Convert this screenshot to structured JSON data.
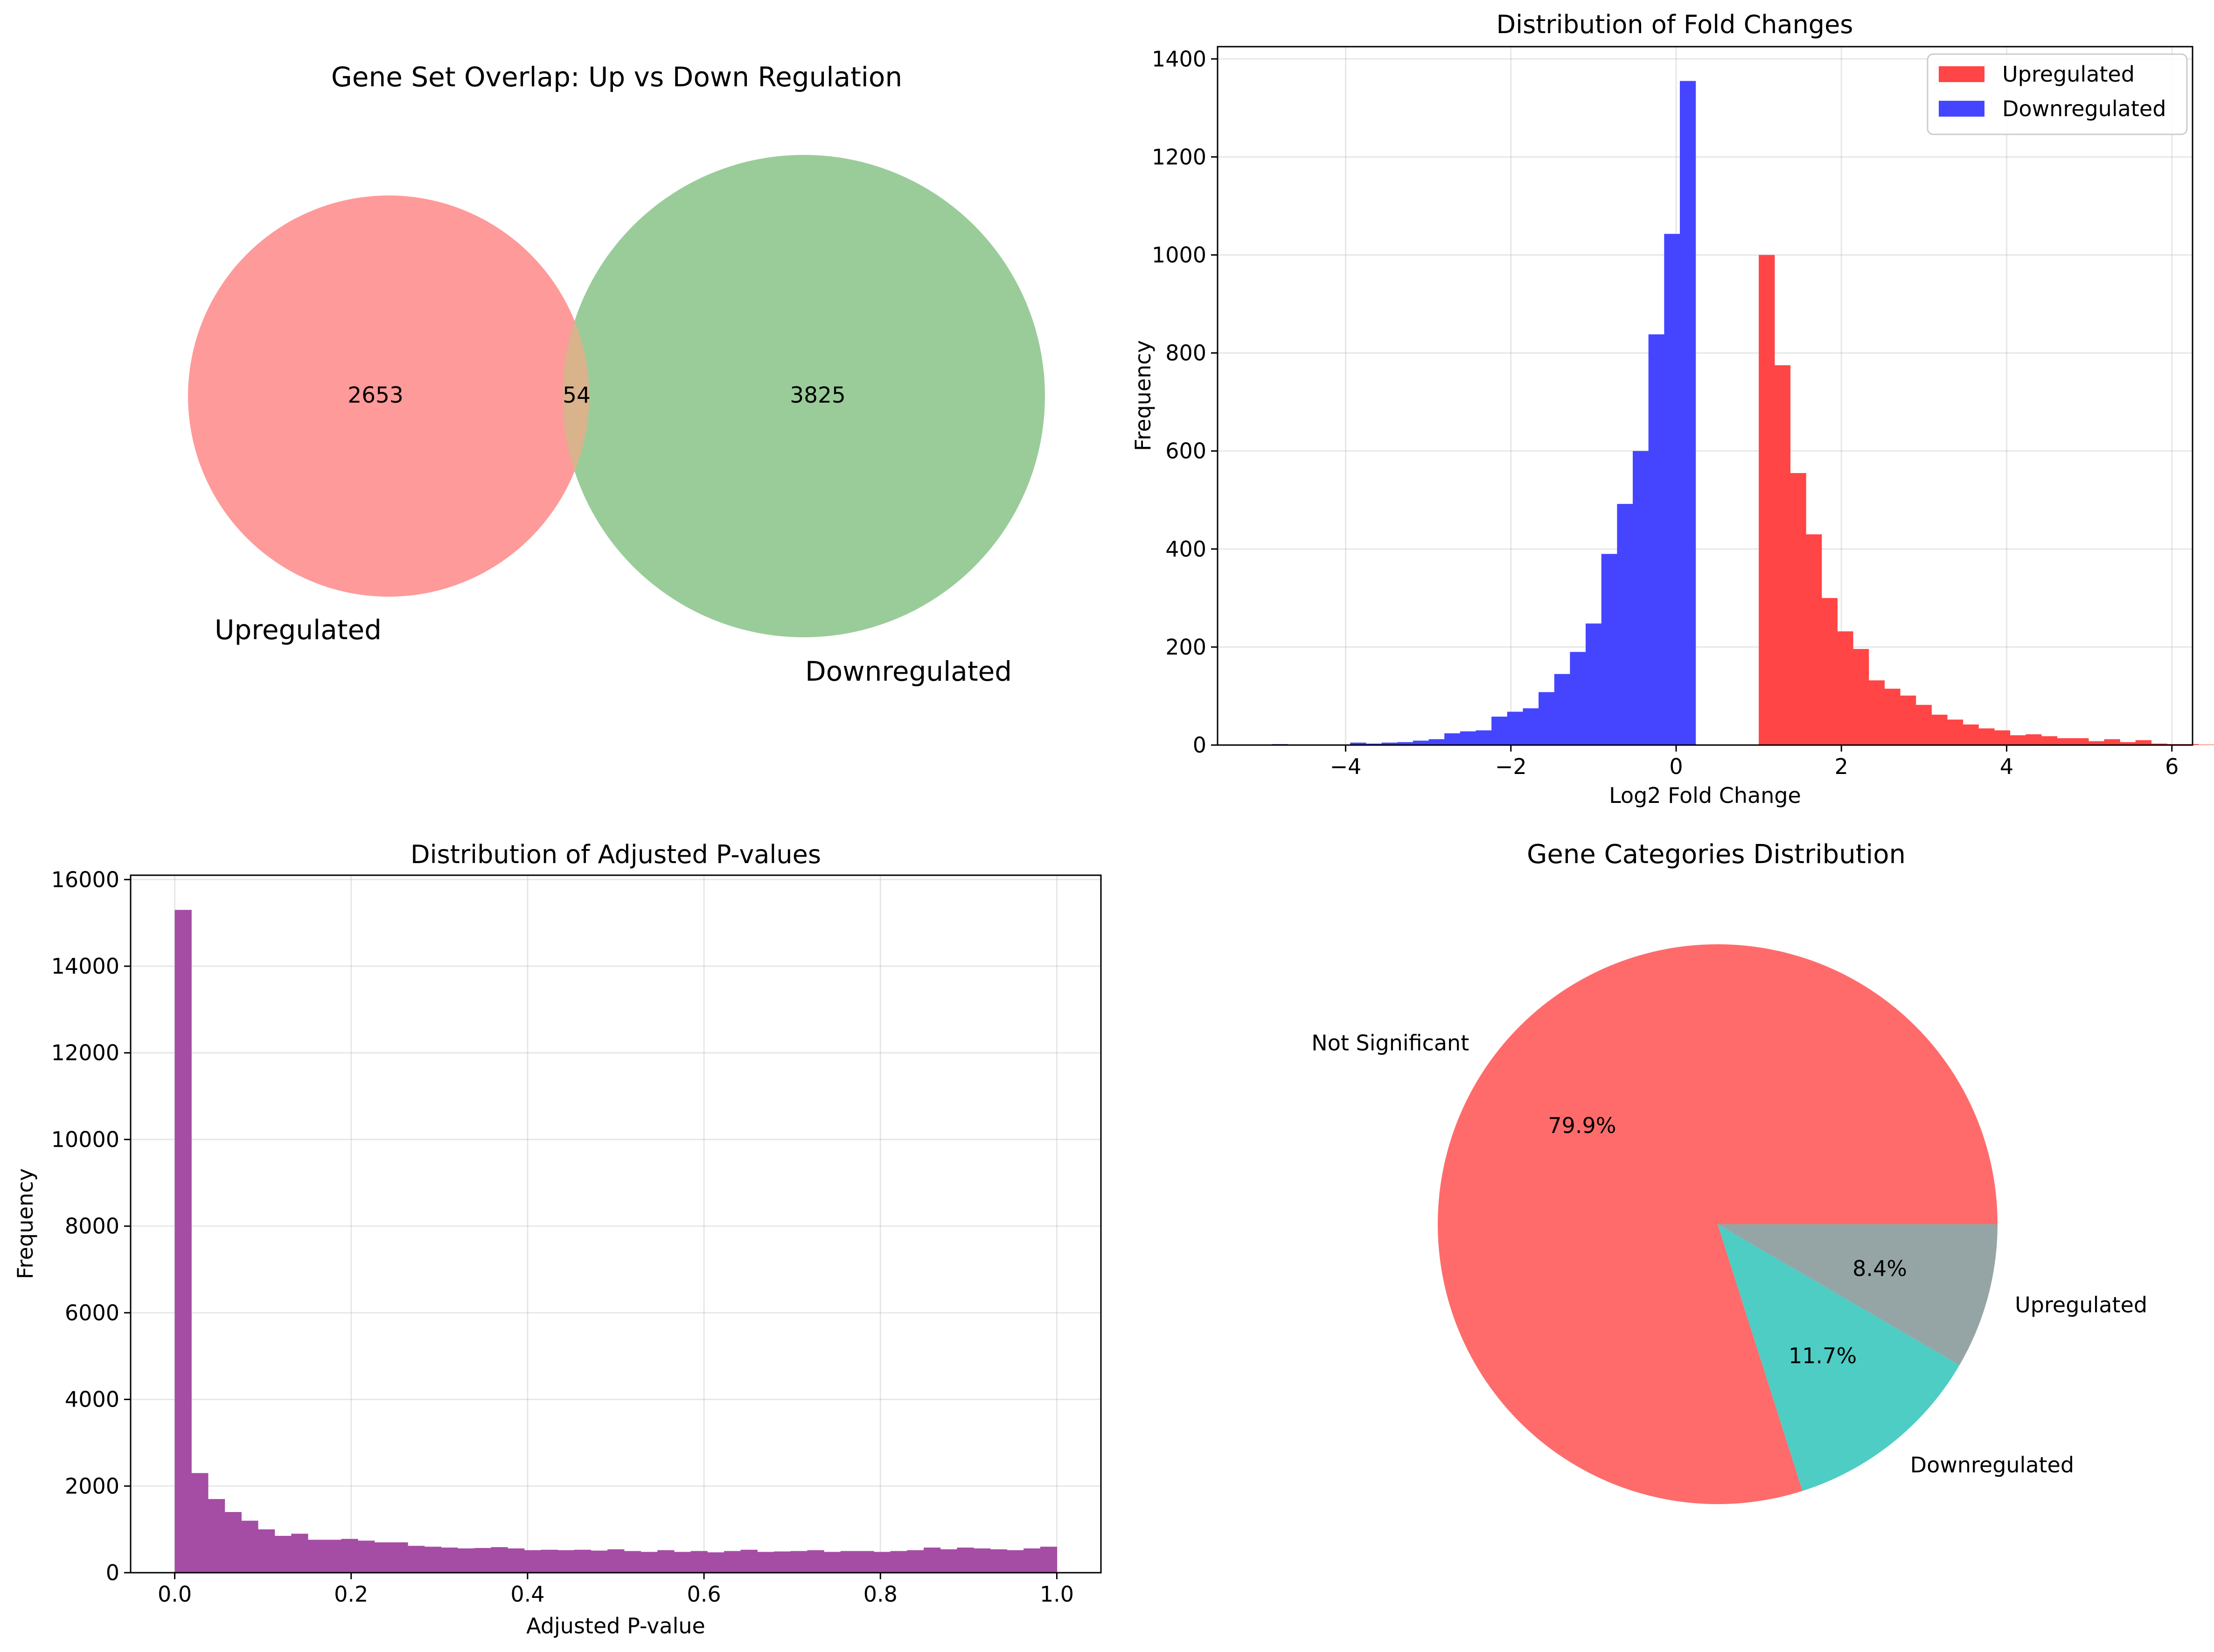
{
  "chart_data": [
    {
      "type": "venn",
      "title": "Gene Set Overlap: Up vs Down Regulation",
      "sets": [
        {
          "name": "Upregulated",
          "only": 2653,
          "color": "#ff9a9a"
        },
        {
          "name": "Downregulated",
          "only": 3825,
          "color": "#9acc9a"
        }
      ],
      "overlap": 54,
      "overlap_color": "#d9b38c"
    },
    {
      "type": "bar",
      "title": "Distribution of Fold Changes",
      "xlabel": "Log2 Fold Change",
      "ylabel": "Frequency",
      "xlim": [
        -5.55,
        6.25
      ],
      "ylim": [
        0,
        1425
      ],
      "xticks": [
        -4,
        -2,
        0,
        2,
        4,
        6
      ],
      "xtick_labels": [
        "−4",
        "−2",
        "0",
        "2",
        "4",
        "6"
      ],
      "yticks": [
        0,
        200,
        400,
        600,
        800,
        1000,
        1200,
        1400
      ],
      "grid": true,
      "legend": "top-right",
      "bin_width": 0.19,
      "series": [
        {
          "name": "Upregulated",
          "color": "#ff4545",
          "bin_start": 1.0,
          "values": [
            1000,
            775,
            555,
            430,
            300,
            232,
            196,
            132,
            115,
            101,
            82,
            62,
            52,
            42,
            34,
            30,
            20,
            22,
            18,
            14,
            14,
            8,
            12,
            6,
            10,
            3,
            2,
            2,
            1,
            1,
            1,
            1
          ]
        },
        {
          "name": "Downregulated",
          "color": "#4545ff",
          "bin_start": -4.895,
          "values": [
            2,
            1,
            0,
            0,
            1,
            5,
            3,
            5,
            6,
            9,
            12,
            24,
            28,
            30,
            58,
            68,
            75,
            108,
            145,
            190,
            248,
            390,
            492,
            600,
            838,
            1043,
            1355
          ]
        }
      ]
    },
    {
      "type": "bar",
      "title": "Distribution of Adjusted P-values",
      "xlabel": "Adjusted P-value",
      "ylabel": "Frequency",
      "xlim": [
        -0.05,
        1.05
      ],
      "ylim": [
        0,
        16100
      ],
      "xticks": [
        0.0,
        0.2,
        0.4,
        0.6,
        0.8,
        1.0
      ],
      "xtick_labels": [
        "0.0",
        "0.2",
        "0.4",
        "0.6",
        "0.8",
        "1.0"
      ],
      "yticks": [
        0,
        2000,
        4000,
        6000,
        8000,
        10000,
        12000,
        14000,
        16000
      ],
      "grid": true,
      "bin_width": 0.02,
      "bin_start": 0.0,
      "color": "#a54ca5",
      "values": [
        15300,
        2300,
        1700,
        1400,
        1200,
        1000,
        850,
        900,
        760,
        760,
        780,
        740,
        700,
        700,
        620,
        600,
        580,
        560,
        570,
        590,
        560,
        520,
        530,
        520,
        530,
        510,
        540,
        500,
        480,
        520,
        480,
        500,
        470,
        500,
        530,
        480,
        490,
        500,
        520,
        480,
        500,
        500,
        480,
        500,
        520,
        580,
        540,
        580,
        560,
        540,
        520,
        560,
        600
      ]
    },
    {
      "type": "pie",
      "title": "Gene Categories Distribution",
      "labels": [
        "Not Significant",
        "Downregulated",
        "Upregulated"
      ],
      "values": [
        79.9,
        11.7,
        8.4
      ],
      "value_labels": [
        "79.9%",
        "11.7%",
        "8.4%"
      ],
      "colors": [
        "#ff6b6b",
        "#4ecdc4",
        "#95a5a6"
      ]
    }
  ]
}
